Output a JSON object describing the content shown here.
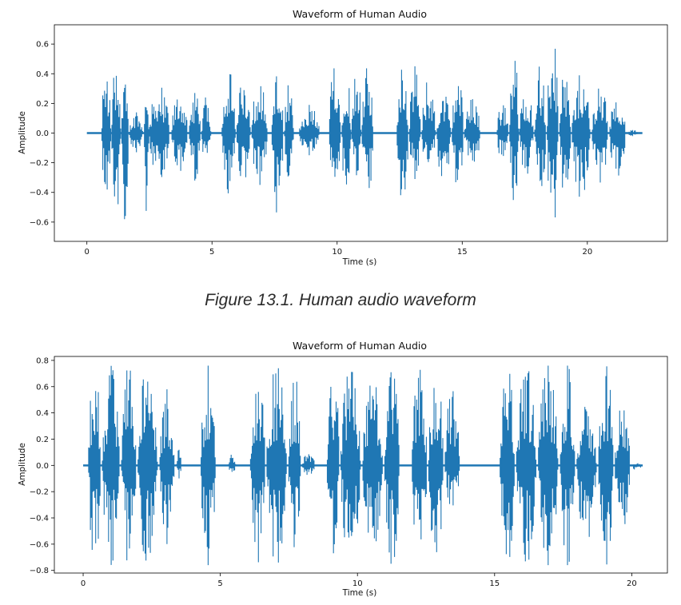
{
  "caption": "Figure 13.1. Human audio waveform",
  "colors": {
    "waveform": "#1f77b4",
    "axis": "#000000"
  },
  "chart_data": [
    {
      "type": "line",
      "title": "Waveform of Human Audio",
      "xlabel": "Time (s)",
      "ylabel": "Amplitude",
      "xlim": [
        -1.3,
        23.2
      ],
      "ylim": [
        -0.73,
        0.73
      ],
      "x_ticks": [
        0,
        5,
        10,
        15,
        20
      ],
      "y_ticks": [
        -0.6,
        -0.4,
        -0.2,
        0.0,
        0.2,
        0.4,
        0.6
      ],
      "y_tick_labels": [
        "−0.6",
        "−0.4",
        "−0.2",
        "0.0",
        "0.2",
        "0.4",
        "0.6"
      ],
      "x_range": [
        0,
        22.2
      ],
      "grid": false,
      "bursts": [
        {
          "t0": 0.6,
          "t1": 1.0,
          "pos": 0.47,
          "neg": -0.46
        },
        {
          "t0": 1.0,
          "t1": 1.4,
          "pos": 0.58,
          "neg": -0.58
        },
        {
          "t0": 1.4,
          "t1": 1.7,
          "pos": 0.64,
          "neg": -0.63
        },
        {
          "t0": 1.7,
          "t1": 2.3,
          "pos": 0.14,
          "neg": -0.13
        },
        {
          "t0": 2.3,
          "t1": 2.5,
          "pos": 0.63,
          "neg": -0.62
        },
        {
          "t0": 2.5,
          "t1": 3.4,
          "pos": 0.32,
          "neg": -0.31
        },
        {
          "t0": 3.4,
          "t1": 4.1,
          "pos": 0.3,
          "neg": -0.29
        },
        {
          "t0": 4.1,
          "t1": 4.6,
          "pos": 0.27,
          "neg": -0.32
        },
        {
          "t0": 4.6,
          "t1": 5.0,
          "pos": 0.3,
          "neg": -0.24
        },
        {
          "t0": 5.4,
          "t1": 6.0,
          "pos": 0.45,
          "neg": -0.44
        },
        {
          "t0": 6.0,
          "t1": 6.6,
          "pos": 0.36,
          "neg": -0.34
        },
        {
          "t0": 6.6,
          "t1": 7.3,
          "pos": 0.37,
          "neg": -0.36
        },
        {
          "t0": 7.4,
          "t1": 7.9,
          "pos": 0.45,
          "neg": -0.55
        },
        {
          "t0": 7.9,
          "t1": 8.3,
          "pos": 0.33,
          "neg": -0.3
        },
        {
          "t0": 8.5,
          "t1": 9.4,
          "pos": 0.19,
          "neg": -0.15
        },
        {
          "t0": 9.7,
          "t1": 10.2,
          "pos": 0.58,
          "neg": -0.57
        },
        {
          "t0": 10.2,
          "t1": 10.6,
          "pos": 0.5,
          "neg": -0.52
        },
        {
          "t0": 10.6,
          "t1": 11.0,
          "pos": 0.58,
          "neg": -0.4
        },
        {
          "t0": 11.0,
          "t1": 11.5,
          "pos": 0.46,
          "neg": -0.47
        },
        {
          "t0": 12.4,
          "t1": 12.9,
          "pos": 0.6,
          "neg": -0.61
        },
        {
          "t0": 12.9,
          "t1": 13.4,
          "pos": 0.45,
          "neg": -0.31
        },
        {
          "t0": 13.4,
          "t1": 14.0,
          "pos": 0.38,
          "neg": -0.28
        },
        {
          "t0": 14.0,
          "t1": 14.6,
          "pos": 0.29,
          "neg": -0.39
        },
        {
          "t0": 14.6,
          "t1": 15.1,
          "pos": 0.42,
          "neg": -0.38
        },
        {
          "t0": 15.1,
          "t1": 15.8,
          "pos": 0.24,
          "neg": -0.24
        },
        {
          "t0": 16.4,
          "t1": 16.9,
          "pos": 0.21,
          "neg": -0.2
        },
        {
          "t0": 16.9,
          "t1": 17.3,
          "pos": 0.55,
          "neg": -0.48
        },
        {
          "t0": 17.3,
          "t1": 17.9,
          "pos": 0.33,
          "neg": -0.32
        },
        {
          "t0": 17.9,
          "t1": 18.4,
          "pos": 0.47,
          "neg": -0.43
        },
        {
          "t0": 18.4,
          "t1": 18.9,
          "pos": 0.66,
          "neg": -0.66
        },
        {
          "t0": 18.9,
          "t1": 19.4,
          "pos": 0.44,
          "neg": -0.45
        },
        {
          "t0": 19.4,
          "t1": 20.2,
          "pos": 0.4,
          "neg": -0.44
        },
        {
          "t0": 20.2,
          "t1": 20.9,
          "pos": 0.34,
          "neg": -0.34
        },
        {
          "t0": 20.9,
          "t1": 21.6,
          "pos": 0.26,
          "neg": -0.34
        },
        {
          "t0": 21.6,
          "t1": 22.1,
          "pos": 0.02,
          "neg": -0.02
        }
      ]
    },
    {
      "type": "line",
      "title": "Waveform of Human Audio",
      "xlabel": "Time (s)",
      "ylabel": "Amplitude",
      "xlim": [
        -1.05,
        21.3
      ],
      "ylim": [
        -0.82,
        0.83
      ],
      "x_ticks": [
        0,
        5,
        10,
        15,
        20
      ],
      "y_ticks": [
        -0.8,
        -0.6,
        -0.4,
        -0.2,
        0.0,
        0.2,
        0.4,
        0.6,
        0.8
      ],
      "y_tick_labels": [
        "−0.8",
        "−0.6",
        "−0.4",
        "−0.2",
        "0.0",
        "0.2",
        "0.4",
        "0.6",
        "0.8"
      ],
      "x_range": [
        0,
        20.4
      ],
      "grid": false,
      "bursts": [
        {
          "t0": 0.2,
          "t1": 0.7,
          "pos": 0.76,
          "neg": -0.76
        },
        {
          "t0": 0.7,
          "t1": 1.4,
          "pos": 0.76,
          "neg": -0.76
        },
        {
          "t0": 1.4,
          "t1": 2.0,
          "pos": 0.76,
          "neg": -0.76
        },
        {
          "t0": 2.0,
          "t1": 2.8,
          "pos": 0.76,
          "neg": -0.76
        },
        {
          "t0": 2.8,
          "t1": 3.4,
          "pos": 0.58,
          "neg": -0.6
        },
        {
          "t0": 3.4,
          "t1": 3.6,
          "pos": 0.12,
          "neg": -0.1
        },
        {
          "t0": 4.3,
          "t1": 4.9,
          "pos": 0.76,
          "neg": -0.76
        },
        {
          "t0": 5.3,
          "t1": 5.6,
          "pos": 0.1,
          "neg": -0.08
        },
        {
          "t0": 6.1,
          "t1": 6.7,
          "pos": 0.76,
          "neg": -0.76
        },
        {
          "t0": 6.7,
          "t1": 7.5,
          "pos": 0.76,
          "neg": -0.76
        },
        {
          "t0": 7.5,
          "t1": 8.0,
          "pos": 0.7,
          "neg": -0.66
        },
        {
          "t0": 8.0,
          "t1": 8.5,
          "pos": 0.1,
          "neg": -0.08
        },
        {
          "t0": 8.9,
          "t1": 9.4,
          "pos": 0.76,
          "neg": -0.76
        },
        {
          "t0": 9.4,
          "t1": 10.2,
          "pos": 0.76,
          "neg": -0.76
        },
        {
          "t0": 10.2,
          "t1": 11.0,
          "pos": 0.66,
          "neg": -0.64
        },
        {
          "t0": 11.0,
          "t1": 11.6,
          "pos": 0.72,
          "neg": -0.76
        },
        {
          "t0": 12.0,
          "t1": 12.6,
          "pos": 0.76,
          "neg": -0.76
        },
        {
          "t0": 12.6,
          "t1": 13.2,
          "pos": 0.76,
          "neg": -0.76
        },
        {
          "t0": 13.2,
          "t1": 13.8,
          "pos": 0.6,
          "neg": -0.34
        },
        {
          "t0": 15.2,
          "t1": 15.8,
          "pos": 0.76,
          "neg": -0.76
        },
        {
          "t0": 15.8,
          "t1": 16.6,
          "pos": 0.76,
          "neg": -0.76
        },
        {
          "t0": 16.6,
          "t1": 17.4,
          "pos": 0.76,
          "neg": -0.76
        },
        {
          "t0": 17.4,
          "t1": 18.0,
          "pos": 0.76,
          "neg": -0.76
        },
        {
          "t0": 18.0,
          "t1": 18.8,
          "pos": 0.46,
          "neg": -0.58
        },
        {
          "t0": 18.8,
          "t1": 19.4,
          "pos": 0.76,
          "neg": -0.76
        },
        {
          "t0": 19.4,
          "t1": 20.0,
          "pos": 0.52,
          "neg": -0.52
        },
        {
          "t0": 20.0,
          "t1": 20.4,
          "pos": 0.02,
          "neg": -0.04
        }
      ]
    }
  ]
}
